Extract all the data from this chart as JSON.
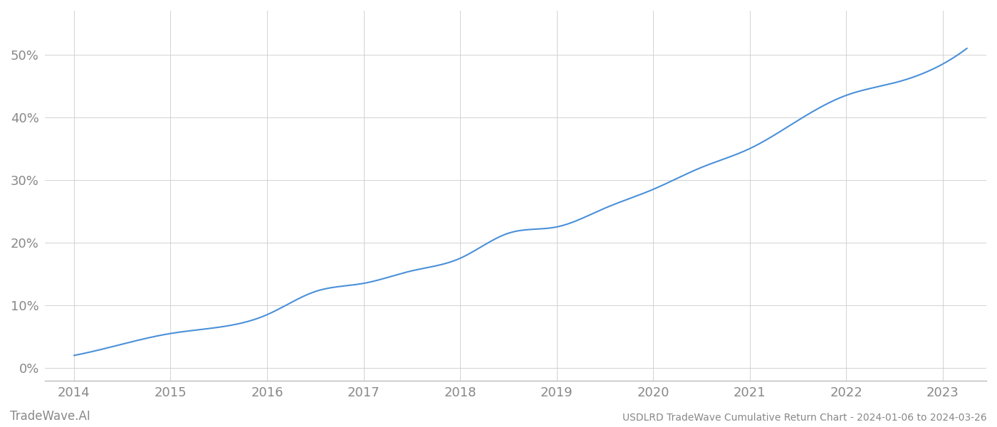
{
  "title": "USDLRD TradeWave Cumulative Return Chart - 2024-01-06 to 2024-03-26",
  "watermark": "TradeWave.AI",
  "line_color": "#4a90d9",
  "line_width": 1.5,
  "background_color": "#ffffff",
  "grid_color": "#cccccc",
  "x_years": [
    2014,
    2015,
    2016,
    2017,
    2018,
    2019,
    2020,
    2021,
    2022,
    2023
  ],
  "key_points_x": [
    2014.0,
    2014.5,
    2015.0,
    2015.5,
    2016.0,
    2016.5,
    2017.0,
    2017.5,
    2018.0,
    2018.5,
    2019.0,
    2019.5,
    2020.0,
    2020.5,
    2021.0,
    2021.5,
    2022.0,
    2022.5,
    2023.0,
    2023.25
  ],
  "key_points_y": [
    2.0,
    3.8,
    5.5,
    6.5,
    8.5,
    12.2,
    13.5,
    15.5,
    17.5,
    21.5,
    22.5,
    25.5,
    28.5,
    32.0,
    35.0,
    39.5,
    43.5,
    45.5,
    48.5,
    51.0
  ],
  "yticks": [
    0,
    10,
    20,
    30,
    40,
    50
  ],
  "ylim": [
    -2,
    57
  ],
  "xlim": [
    2013.7,
    2023.45
  ],
  "title_fontsize": 10,
  "tick_fontsize": 13,
  "watermark_fontsize": 12,
  "tick_color": "#888888",
  "axis_color": "#bbbbbb"
}
